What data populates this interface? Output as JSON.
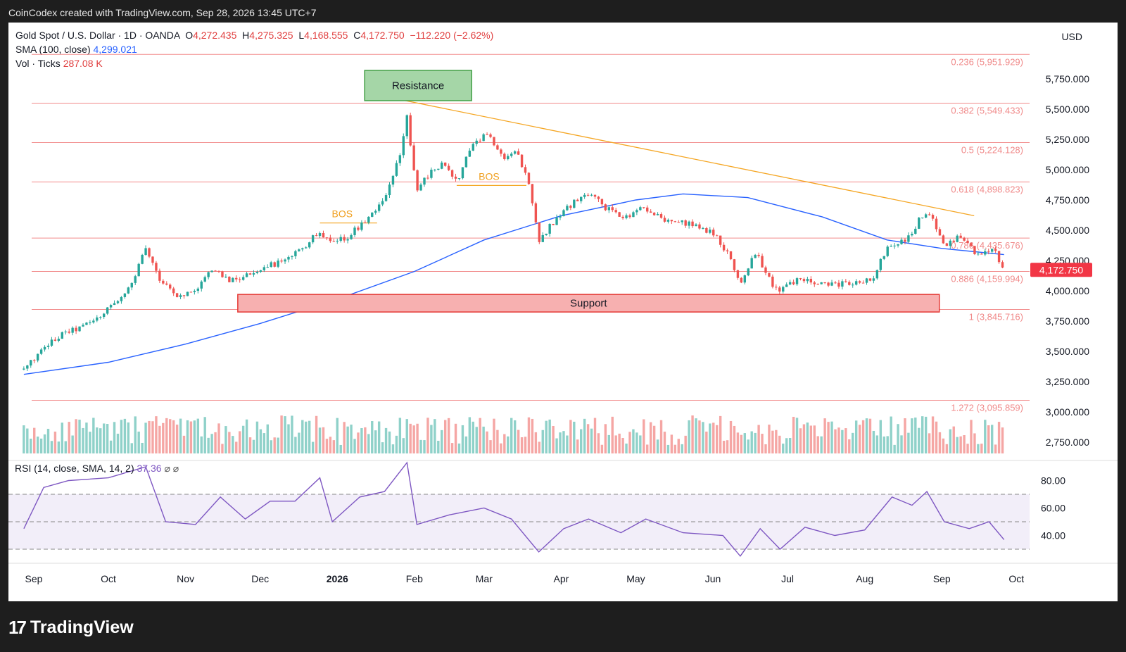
{
  "header": {
    "topline": "CoinCodex created with TradingView.com, Sep 28, 2026 13:45 UTC+7",
    "symbol": "Gold Spot / U.S. Dollar · 1D · OANDA",
    "open_label": "O",
    "open": "4,272.435",
    "high_label": "H",
    "high": "4,275.325",
    "low_label": "L",
    "low": "4,168.555",
    "close_label": "C",
    "close": "4,172.750",
    "change": "−112.220 (−2.62%)",
    "sma_label": "SMA (100, close)",
    "sma_value": "4,299.021",
    "vol_label": "Vol · Ticks",
    "vol_value": "287.08 K",
    "rsi_label": "RSI (14, close, SMA, 14, 2)",
    "rsi_value": "37.36",
    "rsi_icons": "⌀ ⌀"
  },
  "currency": "USD",
  "brand": {
    "logo": "17",
    "name": "TradingView"
  },
  "chart_data": {
    "type": "candlestick",
    "x_ticks": [
      "Sep",
      "Oct",
      "Nov",
      "Dec",
      "2026",
      "Feb",
      "Mar",
      "Apr",
      "May",
      "Jun",
      "Jul",
      "Aug",
      "Sep",
      "Oct"
    ],
    "y_ticks": [
      "5,750.000",
      "5,500.000",
      "5,250.000",
      "5,000.000",
      "4,750.000",
      "4,500.000",
      "4,250.000",
      "4,000.000",
      "3,750.000",
      "3,500.000",
      "3,250.000",
      "3,000.000",
      "2,750.000"
    ],
    "y_tick_values": [
      5750,
      5500,
      5250,
      5000,
      4750,
      4500,
      4250,
      4000,
      3750,
      3500,
      3250,
      3000,
      2750
    ],
    "last_price": "4,172.750",
    "last_price_value": 4172.75,
    "fib_levels": [
      {
        "label": "0.236 (5,951.929)",
        "value": 5951.929
      },
      {
        "label": "0.382 (5,549.433)",
        "value": 5549.433
      },
      {
        "label": "0.5 (5,224.128)",
        "value": 5224.128
      },
      {
        "label": "0.618 (4,898.823)",
        "value": 4898.823
      },
      {
        "label": "0.786 (4,435.676)",
        "value": 4435.676
      },
      {
        "label": "0.886 (4,159.994)",
        "value": 4159.994
      },
      {
        "label": "1 (3,845.716)",
        "value": 3845.716
      },
      {
        "label": "1.272 (3,095.859)",
        "value": 3095.859
      }
    ],
    "annotations": {
      "resistance": "Resistance",
      "support": "Support",
      "bos1": "BOS",
      "bos2": "BOS"
    },
    "price_series": [
      [
        "2025-08-28",
        3350
      ],
      [
        "2025-09-05",
        3520
      ],
      [
        "2025-09-12",
        3640
      ],
      [
        "2025-09-19",
        3690
      ],
      [
        "2025-09-26",
        3760
      ],
      [
        "2025-10-03",
        3900
      ],
      [
        "2025-10-10",
        4030
      ],
      [
        "2025-10-16",
        4350
      ],
      [
        "2025-10-21",
        4120
      ],
      [
        "2025-10-28",
        3960
      ],
      [
        "2025-11-04",
        3990
      ],
      [
        "2025-11-12",
        4180
      ],
      [
        "2025-11-19",
        4080
      ],
      [
        "2025-11-26",
        4130
      ],
      [
        "2025-12-03",
        4210
      ],
      [
        "2025-12-10",
        4230
      ],
      [
        "2025-12-17",
        4330
      ],
      [
        "2025-12-24",
        4480
      ],
      [
        "2025-12-30",
        4380
      ],
      [
        "2026-01-06",
        4460
      ],
      [
        "2026-01-13",
        4600
      ],
      [
        "2026-01-20",
        4750
      ],
      [
        "2026-01-26",
        5100
      ],
      [
        "2026-01-29",
        5450
      ],
      [
        "2026-02-02",
        4800
      ],
      [
        "2026-02-06",
        4950
      ],
      [
        "2026-02-12",
        5050
      ],
      [
        "2026-02-18",
        4900
      ],
      [
        "2026-02-24",
        5200
      ],
      [
        "2026-03-02",
        5300
      ],
      [
        "2026-03-08",
        5100
      ],
      [
        "2026-03-14",
        5150
      ],
      [
        "2026-03-19",
        4900
      ],
      [
        "2026-03-23",
        4400
      ],
      [
        "2026-03-28",
        4550
      ],
      [
        "2026-04-04",
        4700
      ],
      [
        "2026-04-12",
        4800
      ],
      [
        "2026-04-18",
        4700
      ],
      [
        "2026-04-26",
        4600
      ],
      [
        "2026-05-04",
        4700
      ],
      [
        "2026-05-12",
        4580
      ],
      [
        "2026-05-22",
        4550
      ],
      [
        "2026-06-01",
        4480
      ],
      [
        "2026-06-07",
        4300
      ],
      [
        "2026-06-12",
        4050
      ],
      [
        "2026-06-18",
        4320
      ],
      [
        "2026-06-26",
        4000
      ],
      [
        "2026-07-06",
        4100
      ],
      [
        "2026-07-14",
        4050
      ],
      [
        "2026-07-22",
        4050
      ],
      [
        "2026-07-29",
        4080
      ],
      [
        "2026-08-04",
        4100
      ],
      [
        "2026-08-10",
        4350
      ],
      [
        "2026-08-18",
        4430
      ],
      [
        "2026-08-25",
        4650
      ],
      [
        "2026-08-28",
        4600
      ],
      [
        "2026-09-02",
        4380
      ],
      [
        "2026-09-08",
        4450
      ],
      [
        "2026-09-15",
        4300
      ],
      [
        "2026-09-22",
        4330
      ],
      [
        "2026-09-26",
        4172.75
      ]
    ],
    "sma_series": [
      [
        "2025-08-28",
        3310
      ],
      [
        "2025-10-01",
        3410
      ],
      [
        "2025-11-01",
        3560
      ],
      [
        "2025-12-01",
        3730
      ],
      [
        "2026-01-01",
        3930
      ],
      [
        "2026-02-01",
        4160
      ],
      [
        "2026-03-01",
        4420
      ],
      [
        "2026-04-01",
        4620
      ],
      [
        "2026-05-01",
        4750
      ],
      [
        "2026-05-20",
        4800
      ],
      [
        "2026-06-15",
        4770
      ],
      [
        "2026-07-15",
        4610
      ],
      [
        "2026-08-10",
        4420
      ],
      [
        "2026-09-01",
        4350
      ],
      [
        "2026-09-26",
        4299
      ]
    ],
    "rsi": {
      "y_ticks": [
        "80.00",
        "60.00",
        "40.00"
      ],
      "y_tick_values": [
        80,
        60,
        40
      ],
      "bands": [
        70,
        50,
        30
      ],
      "series": [
        [
          "2025-08-28",
          45
        ],
        [
          "2025-09-05",
          75
        ],
        [
          "2025-09-15",
          80
        ],
        [
          "2025-10-01",
          82
        ],
        [
          "2025-10-16",
          90
        ],
        [
          "2025-10-24",
          50
        ],
        [
          "2025-11-05",
          48
        ],
        [
          "2025-11-15",
          68
        ],
        [
          "2025-11-25",
          52
        ],
        [
          "2025-12-05",
          65
        ],
        [
          "2025-12-15",
          65
        ],
        [
          "2025-12-25",
          82
        ],
        [
          "2025-12-30",
          50
        ],
        [
          "2026-01-10",
          68
        ],
        [
          "2026-01-20",
          72
        ],
        [
          "2026-01-29",
          93
        ],
        [
          "2026-02-02",
          48
        ],
        [
          "2026-02-15",
          55
        ],
        [
          "2026-03-01",
          60
        ],
        [
          "2026-03-12",
          52
        ],
        [
          "2026-03-23",
          28
        ],
        [
          "2026-04-02",
          45
        ],
        [
          "2026-04-12",
          52
        ],
        [
          "2026-04-25",
          42
        ],
        [
          "2026-05-05",
          52
        ],
        [
          "2026-05-20",
          42
        ],
        [
          "2026-06-05",
          40
        ],
        [
          "2026-06-12",
          25
        ],
        [
          "2026-06-20",
          45
        ],
        [
          "2026-06-28",
          30
        ],
        [
          "2026-07-08",
          46
        ],
        [
          "2026-07-20",
          40
        ],
        [
          "2026-08-01",
          44
        ],
        [
          "2026-08-12",
          68
        ],
        [
          "2026-08-20",
          62
        ],
        [
          "2026-08-26",
          72
        ],
        [
          "2026-09-02",
          50
        ],
        [
          "2026-09-12",
          45
        ],
        [
          "2026-09-20",
          50
        ],
        [
          "2026-09-26",
          37
        ]
      ]
    },
    "colors": {
      "up": "#26a69a",
      "down": "#ef5350",
      "sma": "#2962ff",
      "rsi": "#7e57c2",
      "fib": "#f28b8b",
      "trendline": "#f5a623"
    }
  }
}
